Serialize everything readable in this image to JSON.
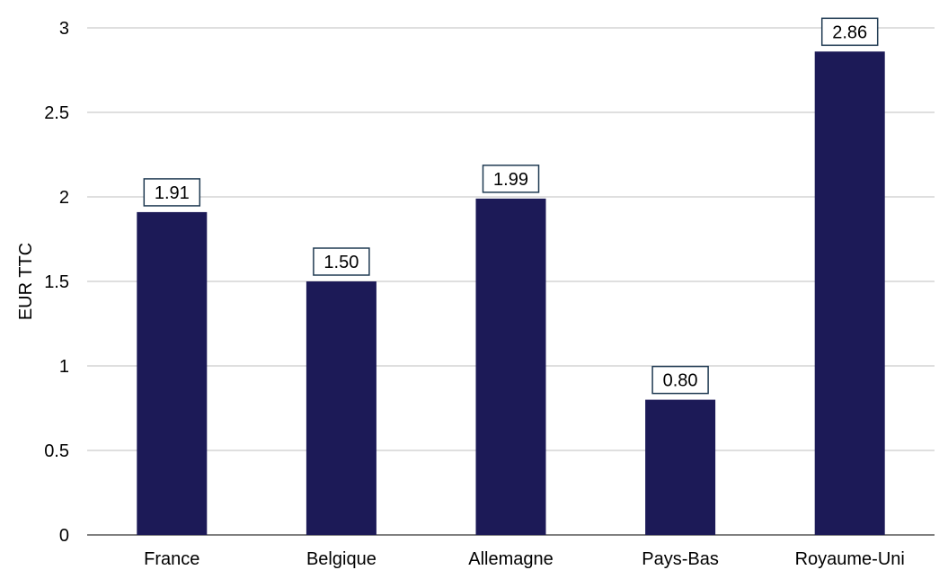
{
  "chart_data": {
    "type": "bar",
    "categories": [
      "France",
      "Belgique",
      "Allemagne",
      "Pays-Bas",
      "Royaume-Uni"
    ],
    "values": [
      1.91,
      1.5,
      1.99,
      0.8,
      2.86
    ],
    "data_labels": [
      "1.91",
      "1.50",
      "1.99",
      "0.80",
      "2.86"
    ],
    "title": "",
    "xlabel": "",
    "ylabel": "EUR TTC",
    "ylim": [
      0,
      3
    ],
    "yticks": [
      0,
      0.5,
      1,
      1.5,
      2,
      2.5,
      3
    ],
    "ytick_labels": [
      "0",
      "0.5",
      "1",
      "1.5",
      "2",
      "2.5",
      "3"
    ],
    "grid": true,
    "legend": "none",
    "colors": {
      "bar": "#1c1a57",
      "gridline": "#bfbfbf",
      "label_border": "#1f3a52"
    }
  }
}
